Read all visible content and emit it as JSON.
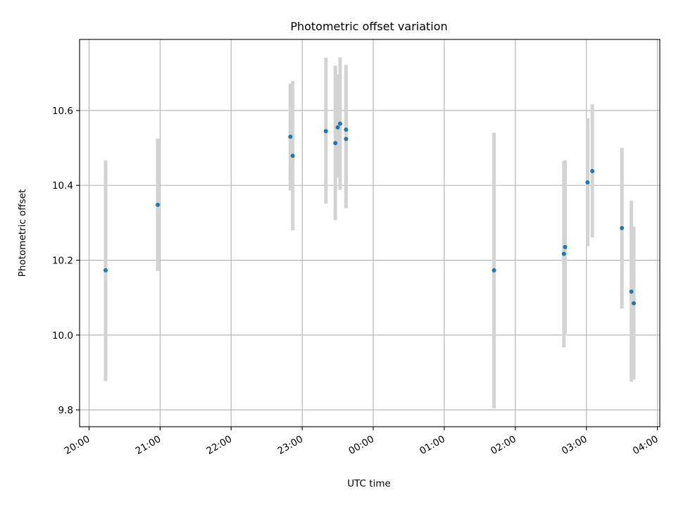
{
  "chart_data": {
    "type": "scatter",
    "title": "Photometric offset variation",
    "xlabel": "UTC time",
    "ylabel": "Photometric offset",
    "x_axis": {
      "type": "time",
      "start": "20:00",
      "ticks": [
        "20:00",
        "21:00",
        "22:00",
        "23:00",
        "00:00",
        "01:00",
        "02:00",
        "03:00",
        "04:00"
      ],
      "range": [
        "19:52",
        "04:02"
      ]
    },
    "y_axis": {
      "ticks": [
        "9.8",
        "10.0",
        "10.2",
        "10.4",
        "10.6"
      ],
      "range": [
        9.755,
        10.79
      ]
    },
    "grid": true,
    "colors": {
      "point": "#1f77b4",
      "errorbar": "#d3d3d3",
      "grid": "#b0b0b0"
    },
    "points": [
      {
        "x": "20:14",
        "y": 10.173,
        "err_low": 9.877,
        "err_high": 10.467
      },
      {
        "x": "20:58",
        "y": 10.348,
        "err_low": 10.171,
        "err_high": 10.525
      },
      {
        "x": "22:50",
        "y": 10.53,
        "err_low": 10.386,
        "err_high": 10.672
      },
      {
        "x": "22:52",
        "y": 10.479,
        "err_low": 10.28,
        "err_high": 10.679
      },
      {
        "x": "23:20",
        "y": 10.545,
        "err_low": 10.351,
        "err_high": 10.741
      },
      {
        "x": "23:28",
        "y": 10.513,
        "err_low": 10.307,
        "err_high": 10.72
      },
      {
        "x": "23:30",
        "y": 10.555,
        "err_low": 10.421,
        "err_high": 10.697
      },
      {
        "x": "23:32",
        "y": 10.565,
        "err_low": 10.388,
        "err_high": 10.742
      },
      {
        "x": "23:37",
        "y": 10.549,
        "err_low": 10.378,
        "err_high": 10.722
      },
      {
        "x": "23:37",
        "y": 10.524,
        "err_low": 10.339,
        "err_high": 10.708
      },
      {
        "x": "01:42",
        "y": 10.173,
        "err_low": 9.804,
        "err_high": 10.541
      },
      {
        "x": "02:41",
        "y": 10.217,
        "err_low": 9.967,
        "err_high": 10.465
      },
      {
        "x": "02:42",
        "y": 10.235,
        "err_low": 10.003,
        "err_high": 10.467
      },
      {
        "x": "03:01",
        "y": 10.408,
        "err_low": 10.238,
        "err_high": 10.579
      },
      {
        "x": "03:05",
        "y": 10.438,
        "err_low": 10.261,
        "err_high": 10.617
      },
      {
        "x": "03:30",
        "y": 10.286,
        "err_low": 10.071,
        "err_high": 10.5
      },
      {
        "x": "03:38",
        "y": 10.116,
        "err_low": 9.875,
        "err_high": 10.359
      },
      {
        "x": "03:40",
        "y": 10.085,
        "err_low": 9.881,
        "err_high": 10.29
      }
    ]
  }
}
